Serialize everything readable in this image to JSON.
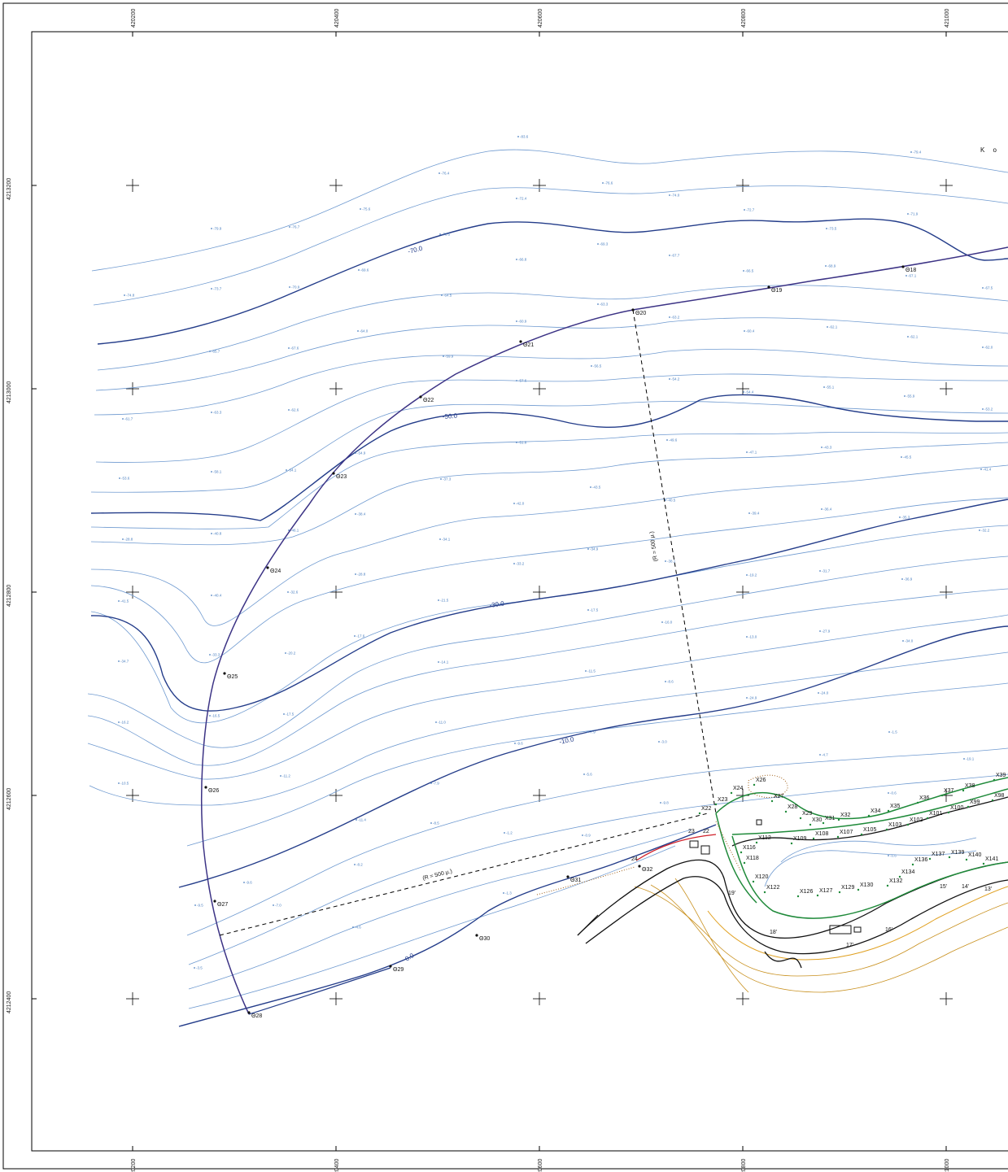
{
  "map": {
    "corner_text": "K o",
    "radius_note": "(R = 500 μ.)",
    "grid_x_labels": [
      "420200",
      "420400",
      "420600",
      "420800",
      "421000"
    ],
    "grid_y_labels": [
      "4213200",
      "4213000",
      "4212800",
      "4212600",
      "4212400"
    ],
    "contour_labels": [
      "-70.0",
      "-50.0",
      "-30.0",
      "-10.0",
      "0.0"
    ],
    "arc_points": [
      "Θ18",
      "Θ19",
      "Θ20",
      "Θ21",
      "Θ22",
      "Θ23",
      "Θ24",
      "Θ25",
      "Θ26",
      "Θ27",
      "Θ28",
      "Θ29",
      "Θ30",
      "Θ31",
      "Θ32"
    ],
    "x_points": [
      "X22",
      "X23",
      "X24",
      "X26",
      "X27",
      "X28",
      "X29",
      "X30",
      "X31",
      "X32",
      "X34",
      "X35",
      "X36",
      "X37",
      "X38",
      "X39",
      "X98",
      "X99",
      "X100",
      "X101",
      "X102",
      "X103",
      "X105",
      "X107",
      "X108",
      "X109",
      "X112",
      "X116",
      "X118",
      "X120",
      "X122",
      "X126",
      "X127",
      "X129",
      "X130",
      "X132",
      "X134",
      "X136",
      "X137",
      "X139",
      "X140",
      "X141"
    ],
    "shore_points": [
      "22",
      "23",
      "24",
      "13'",
      "14'",
      "15'",
      "16'",
      "17'",
      "18'",
      "19'"
    ],
    "spot_depths": [
      "-83.6",
      "-79.4",
      "-76.4",
      "-72.4",
      "-75.6",
      "-76.6",
      "-74.0",
      "-72.7",
      "-73.5",
      "-71.9",
      "-79.9",
      "-76.7",
      "-73.5",
      "-69.3",
      "-67.7",
      "-68.9",
      "-74.8",
      "-73.7",
      "-70.9",
      "-69.6",
      "-66.8",
      "-63.3",
      "-64.5",
      "-66.5",
      "-67.1",
      "-67.5",
      "-65.7",
      "-67.6",
      "-63.2",
      "-64.0",
      "-60.9",
      "-62.1",
      "-60.4",
      "-62.1",
      "-62.0",
      "-61.7",
      "-63.3",
      "-62.6",
      "-59.9",
      "-57.6",
      "-56.5",
      "-54.2",
      "-54.4",
      "-55.1",
      "-55.9",
      "-53.2",
      "-53.6",
      "-58.1",
      "-54.1",
      "-54.9",
      "-51.8",
      "-49.6",
      "-47.1",
      "-43.3",
      "-45.5",
      "-41.4",
      "-37.3",
      "-43.5",
      "-42.0",
      "-40.5",
      "-39.4",
      "-36.4",
      "-35.3",
      "-32.2",
      "-28.8",
      "-40.8",
      "-46.1",
      "-38.4",
      "-34.1",
      "-34.9",
      "-33.2",
      "-38.1",
      "-19.2",
      "-31.7",
      "-36.9",
      "-41.5",
      "-40.4",
      "-32.6",
      "-28.8",
      "-21.5",
      "-17.5",
      "-16.0",
      "-13.0",
      "-27.9",
      "-34.0",
      "-34.7",
      "-33.3",
      "-20.2",
      "-17.6",
      "-14.1",
      "-11.5",
      "-8.6",
      "-24.9",
      "-24.0",
      "-16.2",
      "-16.5",
      "-17.5",
      "-11.0",
      "-9.6",
      "-7.9",
      "-3.0",
      "-4.7",
      "-1.5",
      "-19.1",
      "-10.5",
      "-11.2",
      "-7.9",
      "-5.6",
      "-9.8",
      "-0.6",
      "-11.4",
      "-8.5",
      "-1.2",
      "-0.9",
      "-8.2",
      "-9.6",
      "-7.0",
      "-4.6",
      "-1.3",
      "-9.5",
      "-3.5",
      "-0.6"
    ]
  },
  "chart_data": {
    "type": "map",
    "title": "",
    "grid_easting": [
      420200,
      420400,
      420600,
      420800,
      421000
    ],
    "grid_northing": [
      4213200,
      4213000,
      4212800,
      4212600,
      4212400
    ],
    "contour_levels": [
      -70.0,
      -50.0,
      -30.0,
      -10.0,
      0.0
    ]
  },
  "colors": {
    "major_contour": "#243d8a",
    "minor_contour": "#6f9ad0",
    "alignment": "#3c3385",
    "green_line": "#1f8a3a",
    "road": "#111111",
    "terrain": "#c8901e",
    "red_line": "#d0202a"
  }
}
